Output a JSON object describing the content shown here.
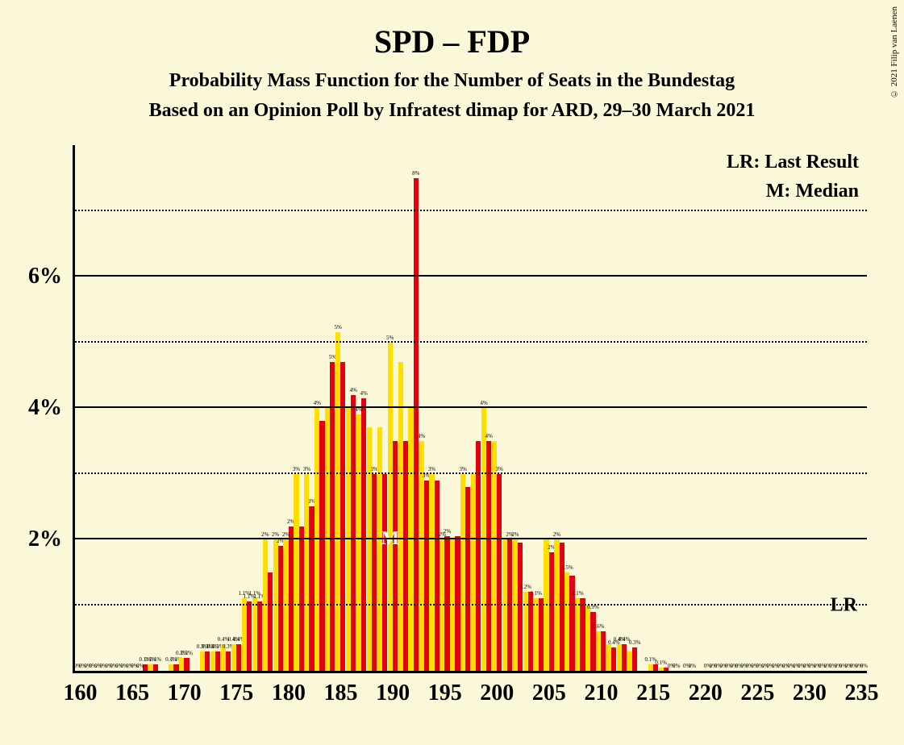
{
  "copyright": "© 2021 Filip van Laenen",
  "title": "SPD – FDP",
  "subtitle1": "Probability Mass Function for the Number of Seats in the Bundestag",
  "subtitle2": "Based on an Opinion Poll by Infratest dimap for ARD, 29–30 March 2021",
  "legend": {
    "lr": "LR: Last Result",
    "m": "M: Median",
    "lr_short": "LR"
  },
  "chart": {
    "type": "bar",
    "background_color": "#fbf8d9",
    "bar_colors": {
      "yellow": "#ffde00",
      "red": "#e3000f"
    },
    "y_axis": {
      "max_pct": 8.0,
      "solid_ticks": [
        2,
        4,
        6
      ],
      "dotted_ticks": [
        1,
        3,
        5,
        7
      ],
      "labels": [
        {
          "pct": 2,
          "text": "2%"
        },
        {
          "pct": 4,
          "text": "4%"
        },
        {
          "pct": 6,
          "text": "6%"
        }
      ]
    },
    "x_axis": {
      "min": 160,
      "max": 235,
      "ticks": [
        160,
        165,
        170,
        175,
        180,
        185,
        190,
        195,
        200,
        205,
        210,
        215,
        220,
        225,
        230,
        235
      ]
    },
    "lr_line_pct": 1.0,
    "median_seat": 190,
    "bars": [
      {
        "seat": 160,
        "y": 0,
        "r": 0,
        "yl": "0%",
        "rl": "0%"
      },
      {
        "seat": 161,
        "y": 0,
        "r": 0,
        "yl": "0%",
        "rl": "0%"
      },
      {
        "seat": 162,
        "y": 0,
        "r": 0,
        "yl": "0%",
        "rl": "0%"
      },
      {
        "seat": 163,
        "y": 0,
        "r": 0,
        "yl": "0%",
        "rl": "0%"
      },
      {
        "seat": 164,
        "y": 0,
        "r": 0,
        "yl": "0%",
        "rl": "0%"
      },
      {
        "seat": 165,
        "y": 0,
        "r": 0,
        "yl": "0%",
        "rl": "0%"
      },
      {
        "seat": 166,
        "y": 0,
        "r": 0.1,
        "yl": "0%",
        "rl": "0.1%"
      },
      {
        "seat": 167,
        "y": 0.1,
        "r": 0.1,
        "yl": "0.1%",
        "rl": "0.1%"
      },
      {
        "seat": 168,
        "y": 0,
        "r": 0,
        "yl": "",
        "rl": ""
      },
      {
        "seat": 169,
        "y": 0.1,
        "r": 0.1,
        "yl": "0.1%",
        "rl": "0.1%"
      },
      {
        "seat": 170,
        "y": 0.2,
        "r": 0.2,
        "yl": "0.2%",
        "rl": "0.2%"
      },
      {
        "seat": 171,
        "y": 0,
        "r": 0,
        "yl": "",
        "rl": ""
      },
      {
        "seat": 172,
        "y": 0.3,
        "r": 0.3,
        "yl": "0.3%",
        "rl": "0.3%"
      },
      {
        "seat": 173,
        "y": 0.3,
        "r": 0.3,
        "yl": "0.3%",
        "rl": "0.3%"
      },
      {
        "seat": 174,
        "y": 0.4,
        "r": 0.3,
        "yl": "0.4%",
        "rl": "0.3%"
      },
      {
        "seat": 175,
        "y": 0.4,
        "r": 0.4,
        "yl": "0.4%",
        "rl": "0.4%"
      },
      {
        "seat": 176,
        "y": 1.1,
        "r": 1.05,
        "yl": "1.1%",
        "rl": "1.1%"
      },
      {
        "seat": 177,
        "y": 1.1,
        "r": 1.05,
        "yl": "1.1%",
        "rl": "1.1%"
      },
      {
        "seat": 178,
        "y": 2,
        "r": 1.5,
        "yl": "2%",
        "rl": ""
      },
      {
        "seat": 179,
        "y": 2,
        "r": 1.9,
        "yl": "2%",
        "rl": "2%"
      },
      {
        "seat": 180,
        "y": 2,
        "r": 2.2,
        "yl": "2%",
        "rl": "2%"
      },
      {
        "seat": 181,
        "y": 3,
        "r": 2.2,
        "yl": "3%",
        "rl": ""
      },
      {
        "seat": 182,
        "y": 3,
        "r": 2.5,
        "yl": "3%",
        "rl": "3%"
      },
      {
        "seat": 183,
        "y": 4,
        "r": 3.8,
        "yl": "4%",
        "rl": ""
      },
      {
        "seat": 184,
        "y": 4,
        "r": 4.7,
        "yl": "",
        "rl": "5%"
      },
      {
        "seat": 185,
        "y": 5.15,
        "r": 4.7,
        "yl": "5%",
        "rl": ""
      },
      {
        "seat": 186,
        "y": 4,
        "r": 4.2,
        "yl": "",
        "rl": "4%"
      },
      {
        "seat": 187,
        "y": 3.9,
        "r": 4.15,
        "yl": "4%",
        "rl": "4%"
      },
      {
        "seat": 188,
        "y": 3.7,
        "r": 3.0,
        "yl": "",
        "rl": "3%"
      },
      {
        "seat": 189,
        "y": 3.7,
        "r": 3.0,
        "yl": "",
        "rl": ""
      },
      {
        "seat": 190,
        "y": 5,
        "r": 3.5,
        "yl": "5%",
        "rl": ""
      },
      {
        "seat": 191,
        "y": 4.7,
        "r": 3.5,
        "yl": "",
        "rl": ""
      },
      {
        "seat": 192,
        "y": 4,
        "r": 7.5,
        "yl": "",
        "rl": "8%"
      },
      {
        "seat": 193,
        "y": 3.5,
        "r": 2.9,
        "yl": "4%",
        "rl": "3%"
      },
      {
        "seat": 194,
        "y": 3,
        "r": 2.9,
        "yl": "3%",
        "rl": ""
      },
      {
        "seat": 195,
        "y": 2,
        "r": 2.05,
        "yl": "2%",
        "rl": "2%"
      },
      {
        "seat": 196,
        "y": 2,
        "r": 2.05,
        "yl": "",
        "rl": ""
      },
      {
        "seat": 197,
        "y": 3,
        "r": 2.8,
        "yl": "3%",
        "rl": ""
      },
      {
        "seat": 198,
        "y": 3,
        "r": 3.5,
        "yl": "",
        "rl": ""
      },
      {
        "seat": 199,
        "y": 4,
        "r": 3.5,
        "yl": "4%",
        "rl": "4%"
      },
      {
        "seat": 200,
        "y": 3.5,
        "r": 3.0,
        "yl": "",
        "rl": "3%"
      },
      {
        "seat": 201,
        "y": 2,
        "r": 2.0,
        "yl": "",
        "rl": "2%"
      },
      {
        "seat": 202,
        "y": 2,
        "r": 1.95,
        "yl": "2%",
        "rl": ""
      },
      {
        "seat": 203,
        "y": 1.2,
        "r": 1.2,
        "yl": "1.2%",
        "rl": ""
      },
      {
        "seat": 204,
        "y": 1.1,
        "r": 1.1,
        "yl": "1.1%",
        "rl": ""
      },
      {
        "seat": 205,
        "y": 2,
        "r": 1.8,
        "yl": "",
        "rl": "2%"
      },
      {
        "seat": 206,
        "y": 2,
        "r": 1.95,
        "yl": "2%",
        "rl": ""
      },
      {
        "seat": 207,
        "y": 1.5,
        "r": 1.45,
        "yl": "1.5%",
        "rl": ""
      },
      {
        "seat": 208,
        "y": 1.1,
        "r": 1.1,
        "yl": "1.1%",
        "rl": ""
      },
      {
        "seat": 209,
        "y": 1.0,
        "r": 0.9,
        "yl": "",
        "rl": "0.9%"
      },
      {
        "seat": 210,
        "y": 0.6,
        "r": 0.6,
        "yl": "0.6%",
        "rl": ""
      },
      {
        "seat": 211,
        "y": 0.4,
        "r": 0.35,
        "yl": "",
        "rl": "0.4%"
      },
      {
        "seat": 212,
        "y": 0.4,
        "r": 0.4,
        "yl": "0.4%",
        "rl": "0.4%"
      },
      {
        "seat": 213,
        "y": 0.3,
        "r": 0.35,
        "yl": "",
        "rl": "0.3%"
      },
      {
        "seat": 214,
        "y": 0,
        "r": 0,
        "yl": "",
        "rl": ""
      },
      {
        "seat": 215,
        "y": 0.1,
        "r": 0.1,
        "yl": "0.1%",
        "rl": ""
      },
      {
        "seat": 216,
        "y": 0.05,
        "r": 0.05,
        "yl": "0.1%",
        "rl": ""
      },
      {
        "seat": 217,
        "y": 0,
        "r": 0,
        "yl": "0%",
        "rl": "0%"
      },
      {
        "seat": 218,
        "y": 0,
        "r": 0,
        "yl": "",
        "rl": "0%"
      },
      {
        "seat": 219,
        "y": 0,
        "r": 0,
        "yl": "0%",
        "rl": ""
      },
      {
        "seat": 220,
        "y": 0,
        "r": 0,
        "yl": "",
        "rl": "0%"
      },
      {
        "seat": 221,
        "y": 0,
        "r": 0,
        "yl": "0%",
        "rl": "0%"
      },
      {
        "seat": 222,
        "y": 0,
        "r": 0,
        "yl": "0%",
        "rl": "0%"
      },
      {
        "seat": 223,
        "y": 0,
        "r": 0,
        "yl": "0%",
        "rl": "0%"
      },
      {
        "seat": 224,
        "y": 0,
        "r": 0,
        "yl": "0%",
        "rl": "0%"
      },
      {
        "seat": 225,
        "y": 0,
        "r": 0,
        "yl": "0%",
        "rl": "0%"
      },
      {
        "seat": 226,
        "y": 0,
        "r": 0,
        "yl": "0%",
        "rl": "0%"
      },
      {
        "seat": 227,
        "y": 0,
        "r": 0,
        "yl": "0%",
        "rl": "0%"
      },
      {
        "seat": 228,
        "y": 0,
        "r": 0,
        "yl": "0%",
        "rl": "0%"
      },
      {
        "seat": 229,
        "y": 0,
        "r": 0,
        "yl": "0%",
        "rl": "0%"
      },
      {
        "seat": 230,
        "y": 0,
        "r": 0,
        "yl": "0%",
        "rl": "0%"
      },
      {
        "seat": 231,
        "y": 0,
        "r": 0,
        "yl": "0%",
        "rl": "0%"
      },
      {
        "seat": 232,
        "y": 0,
        "r": 0,
        "yl": "0%",
        "rl": "0%"
      },
      {
        "seat": 233,
        "y": 0,
        "r": 0,
        "yl": "0%",
        "rl": "0%"
      },
      {
        "seat": 234,
        "y": 0,
        "r": 0,
        "yl": "0%",
        "rl": "0%"
      },
      {
        "seat": 235,
        "y": 0,
        "r": 0,
        "yl": "0%",
        "rl": "0%"
      }
    ]
  }
}
